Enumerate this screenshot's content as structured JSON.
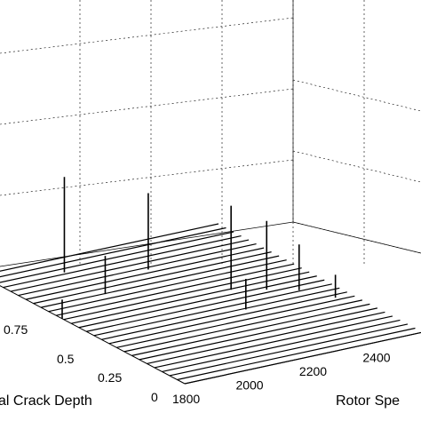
{
  "chart_data": {
    "type": "waterfall-3d-line",
    "title": "",
    "xlabel": "Rotor Spe",
    "ylabel": "al Crack Depth",
    "x_ticks": [
      "1800",
      "2000",
      "2200",
      "2400"
    ],
    "y_ticks": [
      "0.75",
      "0.5",
      "0.25",
      "0"
    ],
    "xlim": [
      1800,
      2550
    ],
    "ylim": [
      0,
      1
    ],
    "grid": true,
    "series_count": 28,
    "peaks": [
      {
        "x": 1800,
        "y": 0.95,
        "z": 0.95
      },
      {
        "x": 2000,
        "y": 0.9,
        "z": 0.25
      },
      {
        "x": 2200,
        "y": 0.8,
        "z": 0.2
      },
      {
        "x": 2000,
        "y": 0.7,
        "z": 0.1
      },
      {
        "x": 1800,
        "y": 0.6,
        "z": 0.05
      },
      {
        "x": 2300,
        "y": 0.55,
        "z": 0.22
      },
      {
        "x": 2380,
        "y": 0.5,
        "z": 0.18
      },
      {
        "x": 2450,
        "y": 0.45,
        "z": 0.12
      },
      {
        "x": 2250,
        "y": 0.4,
        "z": 0.08
      },
      {
        "x": 2500,
        "y": 0.35,
        "z": 0.06
      }
    ]
  }
}
